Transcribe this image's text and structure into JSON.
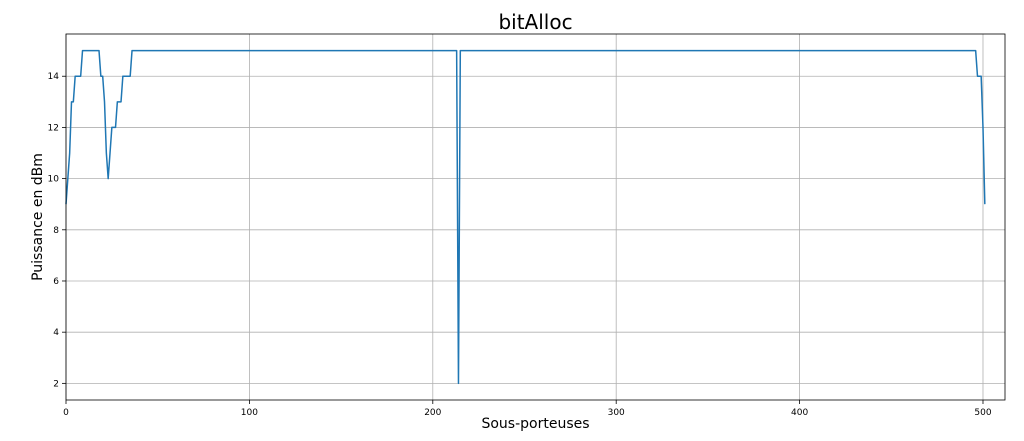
{
  "chart_data": {
    "type": "line",
    "title": "bitAlloc",
    "xlabel": "Sous-porteuses",
    "ylabel": "Puissance en dBm",
    "xlim": [
      0,
      512
    ],
    "ylim": [
      1.35,
      15.65
    ],
    "grid": true,
    "xticks": [
      0,
      100,
      200,
      300,
      400,
      500
    ],
    "yticks": [
      2,
      4,
      6,
      8,
      10,
      12,
      14
    ],
    "series": [
      {
        "color": "#1f77b4",
        "x": [
          0,
          1,
          2,
          3,
          4,
          5,
          8,
          9,
          17,
          18,
          19,
          20,
          21,
          22,
          23,
          24,
          25,
          26,
          27,
          28,
          29,
          30,
          31,
          32,
          35,
          36,
          212,
          213,
          214,
          215,
          495,
          496,
          497,
          498,
          499,
          500,
          501
        ],
        "y": [
          9,
          10,
          11,
          13,
          13,
          14,
          14,
          15,
          15,
          15,
          14,
          14,
          13,
          11,
          10,
          11,
          12,
          12,
          12,
          13,
          13,
          13,
          14,
          14,
          14,
          15,
          15,
          15,
          2,
          15,
          15,
          15,
          14,
          14,
          14,
          12,
          9
        ]
      }
    ]
  }
}
